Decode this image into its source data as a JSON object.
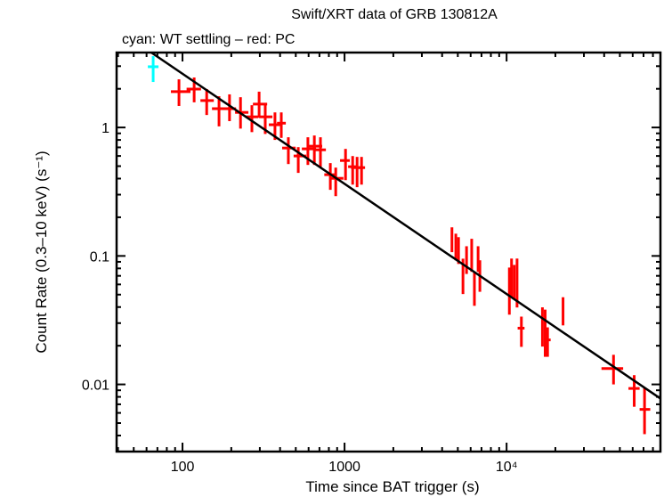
{
  "chart_data": {
    "type": "scatter",
    "title": "Swift/XRT data of GRB 130812A",
    "subtitle": "cyan: WT settling – red: PC",
    "xlabel": "Time since BAT trigger (s)",
    "ylabel": "Count Rate (0.3–10 keV) (s⁻¹)",
    "xscale": "log",
    "yscale": "log",
    "xlim": [
      39.2,
      89000
    ],
    "ylim": [
      0.003,
      3.83
    ],
    "grid": false,
    "x_ticks": [
      {
        "value": 100,
        "label": "100"
      },
      {
        "value": 1000,
        "label": "1000"
      },
      {
        "value": 10000,
        "label": "10⁴"
      }
    ],
    "y_ticks": [
      {
        "value": 1,
        "label": "1"
      },
      {
        "value": 0.1,
        "label": "0.1"
      },
      {
        "value": 0.01,
        "label": "0.01"
      }
    ],
    "series": [
      {
        "name": "WT settling",
        "color": "#00ffff",
        "points": [
          {
            "t": 65.9,
            "t_lo": 61.1,
            "t_hi": 71.1,
            "r": 2.97,
            "r_lo": 2.26,
            "r_hi": 3.59
          }
        ]
      },
      {
        "name": "PC",
        "color": "#ff0000",
        "points": [
          {
            "t": 95.1,
            "t_lo": 84.8,
            "t_hi": 112,
            "r": 1.9,
            "r_lo": 1.47,
            "r_hi": 2.37
          },
          {
            "t": 118,
            "t_lo": 106,
            "t_hi": 130,
            "r": 1.99,
            "r_lo": 1.57,
            "r_hi": 2.45
          },
          {
            "t": 141,
            "t_lo": 129,
            "t_hi": 156,
            "r": 1.62,
            "r_lo": 1.25,
            "r_hi": 1.99
          },
          {
            "t": 168,
            "t_lo": 152,
            "t_hi": 195,
            "r": 1.4,
            "r_lo": 1.02,
            "r_hi": 1.75
          },
          {
            "t": 195,
            "t_lo": 177,
            "t_hi": 214,
            "r": 1.4,
            "r_lo": 1.12,
            "r_hi": 1.81
          },
          {
            "t": 228,
            "t_lo": 211,
            "t_hi": 255,
            "r": 1.31,
            "r_lo": 0.98,
            "r_hi": 1.72
          },
          {
            "t": 268,
            "t_lo": 245,
            "t_hi": 293,
            "r": 1.21,
            "r_lo": 0.92,
            "r_hi": 1.49
          },
          {
            "t": 297,
            "t_lo": 272,
            "t_hi": 333,
            "r": 1.52,
            "r_lo": 1.19,
            "r_hi": 1.9
          },
          {
            "t": 324,
            "t_lo": 297,
            "t_hi": 359,
            "r": 1.21,
            "r_lo": 0.89,
            "r_hi": 1.54
          },
          {
            "t": 372,
            "t_lo": 341,
            "t_hi": 402,
            "r": 1.05,
            "r_lo": 0.8,
            "r_hi": 1.31
          },
          {
            "t": 407,
            "t_lo": 383,
            "t_hi": 434,
            "r": 1.08,
            "r_lo": 0.83,
            "r_hi": 1.31
          },
          {
            "t": 450,
            "t_lo": 412,
            "t_hi": 499,
            "r": 0.692,
            "r_lo": 0.519,
            "r_hi": 0.839
          },
          {
            "t": 518,
            "t_lo": 485,
            "t_hi": 580,
            "r": 0.6,
            "r_lo": 0.443,
            "r_hi": 0.703
          },
          {
            "t": 594,
            "t_lo": 545,
            "t_hi": 667,
            "r": 0.681,
            "r_lo": 0.511,
            "r_hi": 0.839
          },
          {
            "t": 651,
            "t_lo": 588,
            "t_hi": 728,
            "r": 0.715,
            "r_lo": 0.511,
            "r_hi": 0.866
          },
          {
            "t": 710,
            "t_lo": 651,
            "t_hi": 767,
            "r": 0.67,
            "r_lo": 0.487,
            "r_hi": 0.839
          },
          {
            "t": 817,
            "t_lo": 750,
            "t_hi": 892,
            "r": 0.429,
            "r_lo": 0.327,
            "r_hi": 0.528
          },
          {
            "t": 882,
            "t_lo": 810,
            "t_hi": 984,
            "r": 0.402,
            "r_lo": 0.292,
            "r_hi": 0.487
          },
          {
            "t": 1014,
            "t_lo": 938,
            "t_hi": 1077,
            "r": 0.553,
            "r_lo": 0.389,
            "r_hi": 0.681
          },
          {
            "t": 1122,
            "t_lo": 1052,
            "t_hi": 1206,
            "r": 0.495,
            "r_lo": 0.359,
            "r_hi": 0.599
          },
          {
            "t": 1195,
            "t_lo": 1096,
            "t_hi": 1304,
            "r": 0.487,
            "r_lo": 0.343,
            "r_hi": 0.59
          },
          {
            "t": 1273,
            "t_lo": 1184,
            "t_hi": 1338,
            "r": 0.487,
            "r_lo": 0.359,
            "r_hi": 0.59
          },
          {
            "t": 4600,
            "t_lo": 4530,
            "t_hi": 4670,
            "r": 0.135,
            "r_lo": 0.107,
            "r_hi": 0.167
          },
          {
            "t": 4860,
            "t_lo": 4790,
            "t_hi": 4930,
            "r": 0.115,
            "r_lo": 0.0925,
            "r_hi": 0.149
          },
          {
            "t": 5050,
            "t_lo": 4980,
            "t_hi": 5120,
            "r": 0.112,
            "r_lo": 0.0866,
            "r_hi": 0.14
          },
          {
            "t": 5380,
            "t_lo": 5300,
            "t_hi": 5460,
            "r": 0.0705,
            "r_lo": 0.0505,
            "r_hi": 0.0952
          },
          {
            "t": 5660,
            "t_lo": 5580,
            "t_hi": 5740,
            "r": 0.0925,
            "r_lo": 0.0724,
            "r_hi": 0.119
          },
          {
            "t": 6090,
            "t_lo": 6000,
            "t_hi": 6180,
            "r": 0.107,
            "r_lo": 0.0752,
            "r_hi": 0.136
          },
          {
            "t": 6330,
            "t_lo": 6240,
            "t_hi": 6420,
            "r": 0.0572,
            "r_lo": 0.0409,
            "r_hi": 0.0752
          },
          {
            "t": 6670,
            "t_lo": 6580,
            "t_hi": 6760,
            "r": 0.0954,
            "r_lo": 0.0752,
            "r_hi": 0.119
          },
          {
            "t": 6840,
            "t_lo": 6750,
            "t_hi": 6930,
            "r": 0.0775,
            "r_lo": 0.0526,
            "r_hi": 0.0925
          },
          {
            "t": 10400,
            "t_lo": 10260,
            "t_hi": 10540,
            "r": 0.0579,
            "r_lo": 0.0349,
            "r_hi": 0.0812
          },
          {
            "t": 10730,
            "t_lo": 10590,
            "t_hi": 10870,
            "r": 0.0775,
            "r_lo": 0.0473,
            "r_hi": 0.0954
          },
          {
            "t": 11140,
            "t_lo": 10990,
            "t_hi": 11290,
            "r": 0.0682,
            "r_lo": 0.0466,
            "r_hi": 0.0851
          },
          {
            "t": 11600,
            "t_lo": 11450,
            "t_hi": 11750,
            "r": 0.0751,
            "r_lo": 0.0397,
            "r_hi": 0.0954
          },
          {
            "t": 12340,
            "t_lo": 11700,
            "t_hi": 12900,
            "r": 0.0274,
            "r_lo": 0.0196,
            "r_hi": 0.0337
          },
          {
            "t": 16640,
            "t_lo": 16420,
            "t_hi": 16860,
            "r": 0.0274,
            "r_lo": 0.0197,
            "r_hi": 0.0398
          },
          {
            "t": 17300,
            "t_lo": 17070,
            "t_hi": 17530,
            "r": 0.0246,
            "r_lo": 0.0164,
            "r_hi": 0.0382
          },
          {
            "t": 17900,
            "t_lo": 17100,
            "t_hi": 18700,
            "r": 0.0222,
            "r_lo": 0.0164,
            "r_hi": 0.0278
          },
          {
            "t": 22300,
            "t_lo": 22000,
            "t_hi": 22600,
            "r": 0.0383,
            "r_lo": 0.0288,
            "r_hi": 0.0477
          },
          {
            "t": 45700,
            "t_lo": 38500,
            "t_hi": 52400,
            "r": 0.0133,
            "r_lo": 0.01,
            "r_hi": 0.017
          },
          {
            "t": 61300,
            "t_lo": 56500,
            "t_hi": 66200,
            "r": 0.0093,
            "r_lo": 0.0067,
            "r_hi": 0.0118
          },
          {
            "t": 71000,
            "t_lo": 66200,
            "t_hi": 77000,
            "r": 0.00639,
            "r_lo": 0.0041,
            "r_hi": 0.00936
          }
        ]
      }
    ],
    "fit": {
      "name": "power-law fit",
      "color": "#000000",
      "t_start": 64.2,
      "r_start": 3.83,
      "t_end": 89000,
      "r_end": 0.00776
    }
  }
}
